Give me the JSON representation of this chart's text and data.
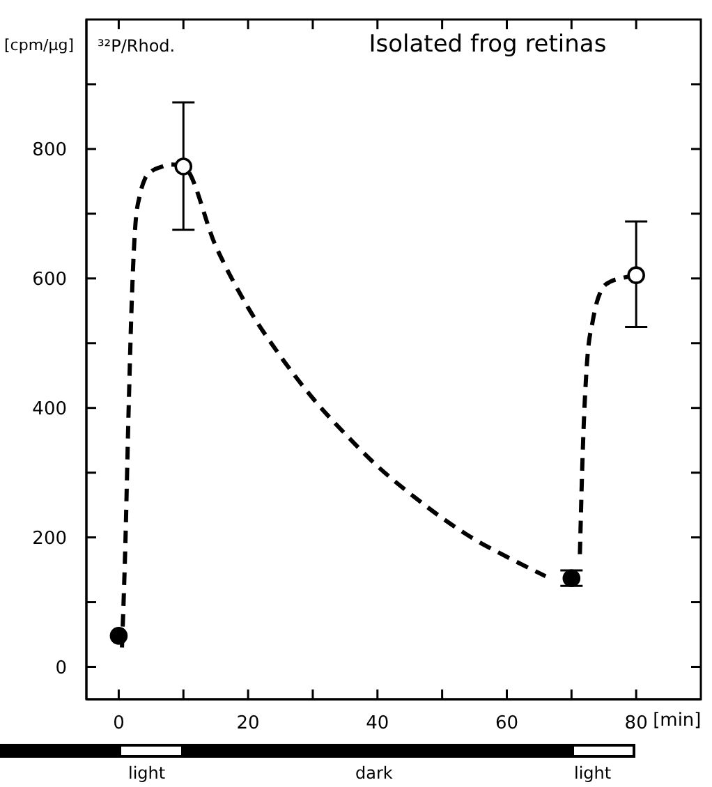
{
  "chart_data": {
    "type": "scatter",
    "title": "Isolated frog retinas",
    "ylabel": "³²P/Rhod.",
    "xlabel": "[min]",
    "annotations": [
      "[cpm/μg]",
      "light",
      "dark",
      "light"
    ],
    "xlim": [
      -5,
      90
    ],
    "xticks": [
      0,
      {
        "value": 10,
        "label": null
      },
      20,
      {
        "value": 30,
        "label": null
      },
      40,
      {
        "value": 50,
        "label": null
      },
      60,
      {
        "value": 70,
        "label": null
      },
      80
    ],
    "ylim": [
      -50,
      1000
    ],
    "yticks": [
      0,
      {
        "value": 100,
        "label": null
      },
      200,
      {
        "value": 300,
        "label": null
      },
      400,
      {
        "value": 500,
        "label": null
      },
      600,
      {
        "value": 700,
        "label": null
      },
      800,
      {
        "value": 900,
        "label": null
      }
    ],
    "marker": "circle",
    "series": [
      {
        "color": "#000000",
        "x": [
          0,
          70
        ],
        "values": [
          48,
          137
        ],
        "errors": [
          null,
          12
        ]
      },
      {
        "color": "#ffffff",
        "x": [
          10,
          80
        ],
        "values": [
          773,
          605
        ],
        "errors": [
          [
            675,
            872
          ],
          [
            525,
            688
          ]
        ]
      },
      {
        "type": "line",
        "color": "#000000",
        "line_style": "dashed",
        "marker": "none",
        "x": [
          0.5,
          1,
          1.5,
          2,
          2.6,
          3.3,
          4.1,
          5,
          6.5,
          8,
          10,
          15,
          20,
          25,
          30,
          35,
          40,
          45,
          50,
          55,
          60,
          66
        ],
        "values": [
          30,
          180,
          385,
          560,
          686,
          730,
          755,
          765,
          772,
          776,
          773,
          650,
          555,
          480,
          415,
          360,
          310,
          268,
          230,
          197,
          170,
          140
        ]
      },
      {
        "type": "line",
        "color": "#000000",
        "line_style": "dashed",
        "marker": "none",
        "x": [
          71.3,
          71.7,
          72.4,
          73.3,
          74.8,
          76,
          77.6,
          80
        ],
        "values": [
          174,
          320,
          470,
          535,
          585,
          595,
          600,
          605
        ]
      }
    ]
  }
}
